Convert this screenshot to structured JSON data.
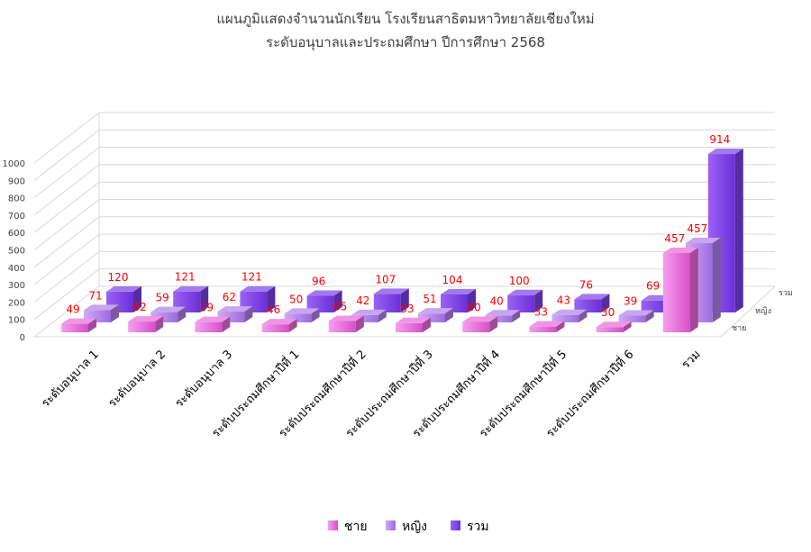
{
  "chart_data": {
    "type": "bar",
    "title": "แผนภูมิแสดงจำนวนนักเรียน โรงเรียนสาธิตมหาวิทยาลัยเชียงใหม่",
    "subtitle": "ระดับอนุบาลและประถมศึกษา ปีการศึกษา 2568",
    "categories": [
      "ระดับอนุบาล 1",
      "ระดับอนุบาล 2",
      "ระดับอนุบาล 3",
      "ระดับประถมศึกษาปีที่ 1",
      "ระดับประถมศึกษาปีที่ 2",
      "ระดับประถมศึกษาปีที่ 3",
      "ระดับประถมศึกษาปีที่ 4",
      "ระดับประถมศึกษาปีที่ 5",
      "ระดับประถมศึกษาปีที่ 6",
      "รวม"
    ],
    "series": [
      {
        "name": "ชาย",
        "values": [
          49,
          62,
          59,
          46,
          65,
          53,
          60,
          33,
          30,
          457
        ],
        "color": "#e868d8"
      },
      {
        "name": "หญิง",
        "values": [
          71,
          59,
          62,
          50,
          42,
          51,
          40,
          43,
          39,
          457
        ],
        "color": "#b07ee8"
      },
      {
        "name": "รวม",
        "values": [
          120,
          121,
          121,
          96,
          107,
          104,
          100,
          76,
          69,
          914
        ],
        "color": "#7b3fe6"
      }
    ],
    "yticks": [
      0,
      100,
      200,
      300,
      400,
      500,
      600,
      700,
      800,
      900,
      1000
    ],
    "ylim": [
      0,
      1000
    ],
    "legend_position": "bottom",
    "grid": true,
    "style": "3d-column"
  }
}
